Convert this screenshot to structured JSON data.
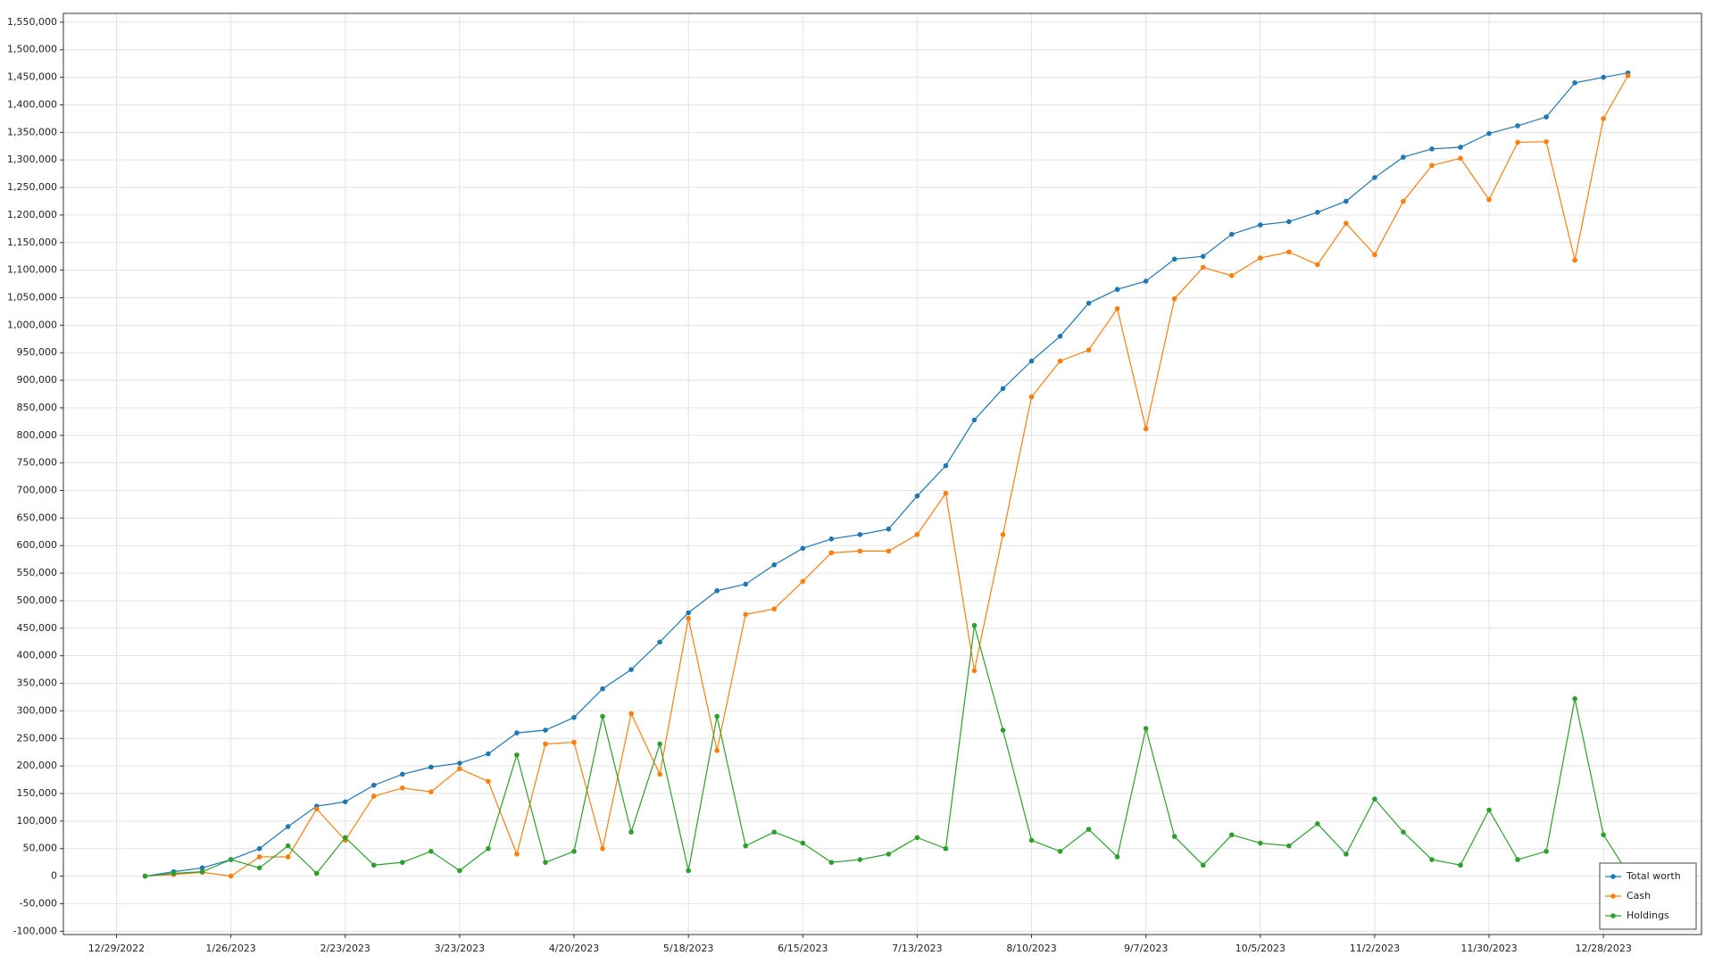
{
  "chart_data": {
    "type": "line",
    "x": [
      "2023-01-05",
      "2023-01-12",
      "2023-01-19",
      "2023-01-26",
      "2023-02-02",
      "2023-02-09",
      "2023-02-16",
      "2023-02-23",
      "2023-03-02",
      "2023-03-09",
      "2023-03-16",
      "2023-03-23",
      "2023-03-30",
      "2023-04-06",
      "2023-04-13",
      "2023-04-20",
      "2023-04-27",
      "2023-05-04",
      "2023-05-11",
      "2023-05-18",
      "2023-05-25",
      "2023-06-01",
      "2023-06-08",
      "2023-06-15",
      "2023-06-22",
      "2023-06-29",
      "2023-07-06",
      "2023-07-13",
      "2023-07-20",
      "2023-07-27",
      "2023-08-03",
      "2023-08-10",
      "2023-08-17",
      "2023-08-24",
      "2023-08-31",
      "2023-09-07",
      "2023-09-14",
      "2023-09-21",
      "2023-09-28",
      "2023-10-05",
      "2023-10-12",
      "2023-10-19",
      "2023-10-26",
      "2023-11-02",
      "2023-11-09",
      "2023-11-16",
      "2023-11-23",
      "2023-11-30",
      "2023-12-07",
      "2023-12-14",
      "2023-12-21",
      "2023-12-28",
      "2024-01-03"
    ],
    "series": [
      {
        "name": "Total worth",
        "color": "#1f77b4",
        "values": [
          0,
          8000,
          15000,
          30000,
          50000,
          90000,
          127000,
          135000,
          165000,
          185000,
          198000,
          205000,
          222000,
          260000,
          265000,
          288000,
          340000,
          375000,
          425000,
          478000,
          518000,
          530000,
          565000,
          595000,
          612000,
          620000,
          630000,
          690000,
          745000,
          828000,
          885000,
          935000,
          980000,
          1040000,
          1065000,
          1080000,
          1120000,
          1125000,
          1165000,
          1182000,
          1188000,
          1205000,
          1225000,
          1268000,
          1305000,
          1320000,
          1323000,
          1348000,
          1362000,
          1378000,
          1440000,
          1450000,
          1458000
        ]
      },
      {
        "name": "Cash",
        "color": "#ff7f0e",
        "values": [
          0,
          3000,
          7000,
          0,
          35000,
          35000,
          122000,
          65000,
          145000,
          160000,
          153000,
          195000,
          172000,
          40000,
          240000,
          243000,
          50000,
          295000,
          185000,
          468000,
          228000,
          475000,
          485000,
          535000,
          587000,
          590000,
          590000,
          620000,
          695000,
          373000,
          620000,
          870000,
          935000,
          955000,
          1030000,
          812000,
          1048000,
          1105000,
          1090000,
          1122000,
          1133000,
          1110000,
          1185000,
          1128000,
          1225000,
          1290000,
          1303000,
          1228000,
          1332000,
          1333000,
          1118000,
          1375000,
          1453000
        ]
      },
      {
        "name": "Holdings",
        "color": "#2ca02c",
        "values": [
          0,
          5000,
          8000,
          30000,
          15000,
          55000,
          5000,
          70000,
          20000,
          25000,
          45000,
          10000,
          50000,
          220000,
          25000,
          45000,
          290000,
          80000,
          240000,
          10000,
          290000,
          55000,
          80000,
          60000,
          25000,
          30000,
          40000,
          70000,
          50000,
          455000,
          265000,
          65000,
          45000,
          85000,
          35000,
          268000,
          72000,
          20000,
          75000,
          60000,
          55000,
          95000,
          40000,
          140000,
          80000,
          30000,
          20000,
          120000,
          30000,
          45000,
          322000,
          75000,
          5000
        ]
      }
    ],
    "xlim": [
      "2022-12-16",
      "2024-01-21"
    ],
    "xticks": [
      {
        "value": "2022-12-29",
        "label": "12/29/2022"
      },
      {
        "value": "2023-01-26",
        "label": "1/26/2023"
      },
      {
        "value": "2023-02-23",
        "label": "2/23/2023"
      },
      {
        "value": "2023-03-23",
        "label": "3/23/2023"
      },
      {
        "value": "2023-04-20",
        "label": "4/20/2023"
      },
      {
        "value": "2023-05-18",
        "label": "5/18/2023"
      },
      {
        "value": "2023-06-15",
        "label": "6/15/2023"
      },
      {
        "value": "2023-07-13",
        "label": "7/13/2023"
      },
      {
        "value": "2023-08-10",
        "label": "8/10/2023"
      },
      {
        "value": "2023-09-07",
        "label": "9/7/2023"
      },
      {
        "value": "2023-10-05",
        "label": "10/5/2023"
      },
      {
        "value": "2023-11-02",
        "label": "11/2/2023"
      },
      {
        "value": "2023-11-30",
        "label": "11/30/2023"
      },
      {
        "value": "2023-12-28",
        "label": "12/28/2023"
      }
    ],
    "ylim": [
      -106000,
      1566000
    ],
    "yticks": [
      {
        "value": -100000,
        "label": "-100,000"
      },
      {
        "value": -50000,
        "label": "-50,000"
      },
      0,
      {
        "value": 50000,
        "label": "50,000"
      },
      {
        "value": 100000,
        "label": "100,000"
      },
      {
        "value": 150000,
        "label": "150,000"
      },
      {
        "value": 200000,
        "label": "200,000"
      },
      {
        "value": 250000,
        "label": "250,000"
      },
      {
        "value": 300000,
        "label": "300,000"
      },
      {
        "value": 350000,
        "label": "350,000"
      },
      {
        "value": 400000,
        "label": "400,000"
      },
      {
        "value": 450000,
        "label": "450,000"
      },
      {
        "value": 500000,
        "label": "500,000"
      },
      {
        "value": 550000,
        "label": "550,000"
      },
      {
        "value": 600000,
        "label": "600,000"
      },
      {
        "value": 650000,
        "label": "650,000"
      },
      {
        "value": 700000,
        "label": "700,000"
      },
      {
        "value": 750000,
        "label": "750,000"
      },
      {
        "value": 800000,
        "label": "800,000"
      },
      {
        "value": 850000,
        "label": "850,000"
      },
      {
        "value": 900000,
        "label": "900,000"
      },
      {
        "value": 950000,
        "label": "950,000"
      },
      {
        "value": 1000000,
        "label": "1,000,000"
      },
      {
        "value": 1050000,
        "label": "1,050,000"
      },
      {
        "value": 1100000,
        "label": "1,100,000"
      },
      {
        "value": 1150000,
        "label": "1,150,000"
      },
      {
        "value": 1200000,
        "label": "1,200,000"
      },
      {
        "value": 1250000,
        "label": "1,250,000"
      },
      {
        "value": 1300000,
        "label": "1,300,000"
      },
      {
        "value": 1350000,
        "label": "1,350,000"
      },
      {
        "value": 1400000,
        "label": "1,400,000"
      },
      {
        "value": 1450000,
        "label": "1,450,000"
      },
      {
        "value": 1500000,
        "label": "1,500,000"
      },
      {
        "value": 1550000,
        "label": "1,550,000"
      }
    ],
    "grid": true,
    "legend": "lower right"
  }
}
